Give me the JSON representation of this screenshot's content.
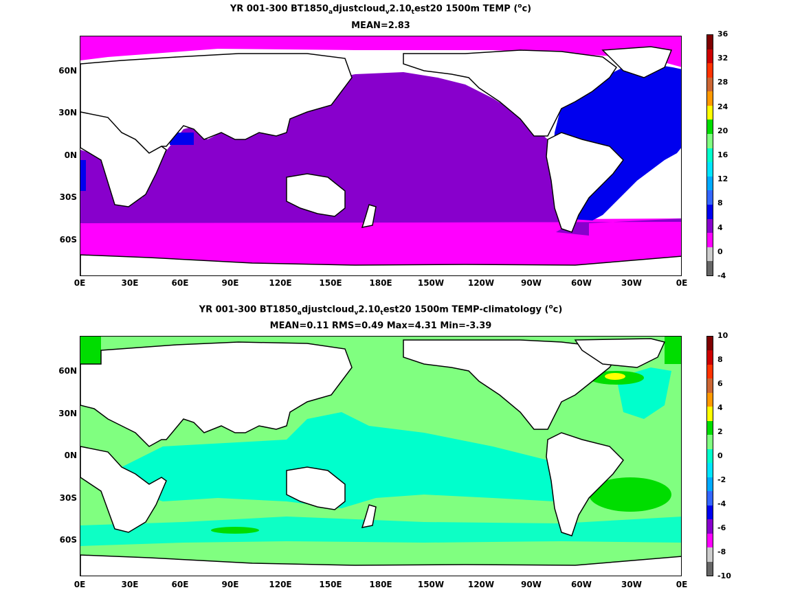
{
  "panels": [
    {
      "title_main": "YR 001-300 BT1850",
      "title_sub1": "a",
      "title_mid": "djustcloud",
      "title_sub2": "v",
      "title_mid2": "2.10",
      "title_sub3": "t",
      "title_tail": "est20 1500m TEMP (",
      "unit_sup": "o",
      "unit_tail": "c)",
      "stats": "MEAN=2.83",
      "colorbar_ticks": [
        "36",
        "32",
        "28",
        "24",
        "20",
        "16",
        "12",
        "8",
        "4",
        "0",
        "-4"
      ]
    },
    {
      "title_main": "YR 001-300 BT1850",
      "title_sub1": "a",
      "title_mid": "djustcloud",
      "title_sub2": "v",
      "title_mid2": "2.10",
      "title_sub3": "t",
      "title_tail": "est20 1500m TEMP-climatology (",
      "unit_sup": "o",
      "unit_tail": "c)",
      "stats": "MEAN=0.11   RMS=0.49   Max=4.31   Min=-3.39",
      "colorbar_ticks": [
        "10",
        "8",
        "6",
        "4",
        "2",
        "0",
        "-2",
        "-4",
        "-6",
        "-8",
        "-10"
      ]
    }
  ],
  "lat_labels": [
    "60N",
    "30N",
    "0N",
    "30S",
    "60S"
  ],
  "lon_labels": [
    "0E",
    "30E",
    "60E",
    "90E",
    "120E",
    "150E",
    "180E",
    "150W",
    "120W",
    "90W",
    "60W",
    "30W",
    "0E"
  ],
  "colorbar_colors": [
    "#7f0000",
    "#cc0000",
    "#ff3300",
    "#cc6633",
    "#ff9900",
    "#ffff00",
    "#00dd00",
    "#80ff80",
    "#00ffcc",
    "#00e5ff",
    "#00aaff",
    "#3366ff",
    "#0000ee",
    "#8800cc",
    "#ff00ff",
    "#cccccc",
    "#666666"
  ],
  "ocean_colors": {
    "panel1": {
      "pacific": "#8800cc",
      "southern": "#ff00ff",
      "atlantic": "#0000ee",
      "arctic": "#ff00ff"
    },
    "panel2": {
      "light": "#80ff80",
      "teal": "#00ffcc",
      "green": "#00dd00",
      "yellow": "#ffff00",
      "cyan": "#00e5ff"
    }
  }
}
